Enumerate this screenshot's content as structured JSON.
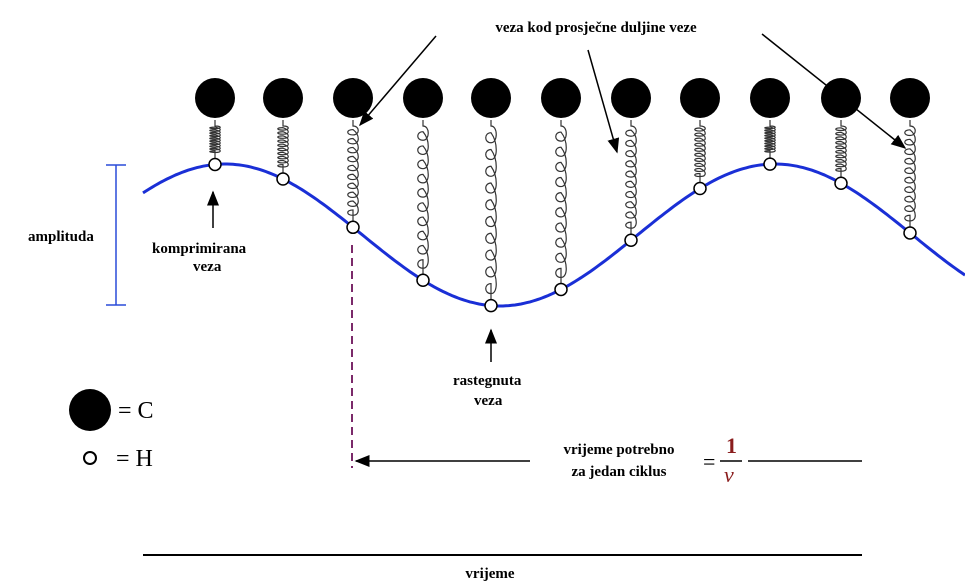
{
  "top_label": "veza kod prosječne duljine veze",
  "amplitude_label": "amplituda",
  "compressed_label": [
    "komprimirana",
    "veza"
  ],
  "stretched_label": [
    "rastegnuta",
    "veza"
  ],
  "legend": {
    "carbon": "= C",
    "hydrogen": "= H"
  },
  "cycle_label": [
    "vrijeme potrebno",
    "za jedan ciklus"
  ],
  "cycle_formula": {
    "equals": "=",
    "numerator": "1",
    "denominator": "ν"
  },
  "time_axis_label": "vrijeme"
}
